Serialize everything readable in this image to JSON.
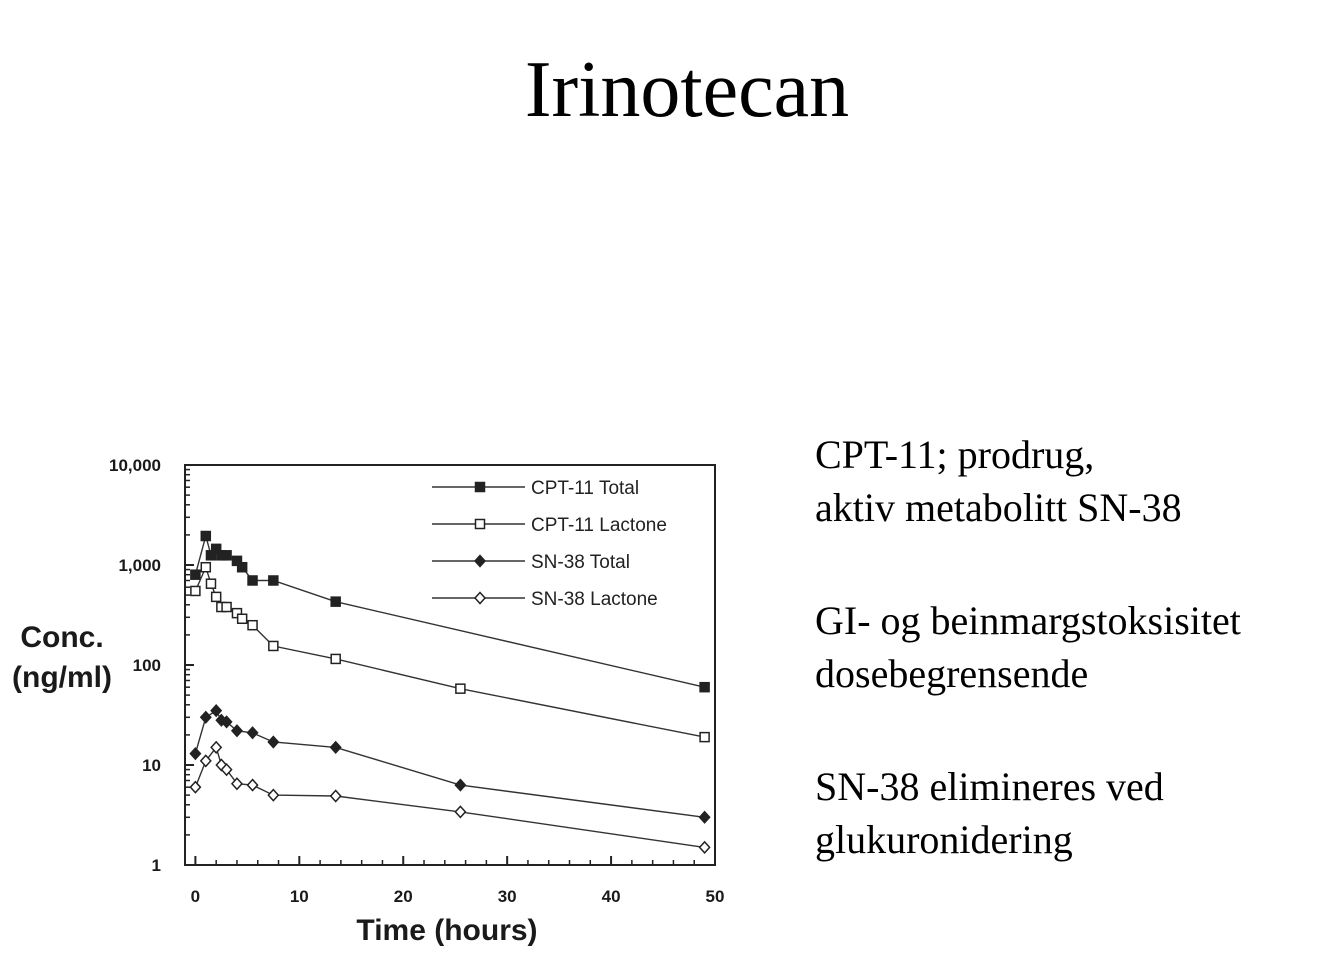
{
  "title": "Irinotecan",
  "chart_data": {
    "type": "line",
    "xlabel": "Time (hours)",
    "ylabel": [
      "Conc.",
      "(ng/ml)"
    ],
    "xlim": [
      -1,
      50
    ],
    "ylim": [
      1,
      10000
    ],
    "yscale": "log",
    "xticks": [
      0,
      10,
      20,
      30,
      40,
      50
    ],
    "xtick_labels": [
      "0",
      "10",
      "20",
      "30",
      "40",
      "50"
    ],
    "yticks": [
      1,
      10,
      100,
      1000,
      10000
    ],
    "ytick_labels": [
      "1",
      "10",
      "100",
      "1,000",
      "10,000"
    ],
    "grid": false,
    "legend_position": "top-right",
    "series": [
      {
        "name": "CPT-11 Total",
        "marker": "square",
        "filled": true,
        "x": [
          0,
          1,
          1.5,
          2,
          2.5,
          3,
          4,
          4.5,
          5.5,
          7.5,
          13.5,
          49
        ],
        "y": [
          800,
          1950,
          1250,
          1450,
          1250,
          1250,
          1100,
          950,
          700,
          700,
          430,
          60
        ]
      },
      {
        "name": "CPT-11 Lactone",
        "marker": "square",
        "filled": false,
        "x": [
          0,
          1,
          1.5,
          2,
          2.5,
          3,
          4,
          4.5,
          5.5,
          7.5,
          13.5,
          25.5,
          49
        ],
        "y": [
          550,
          950,
          650,
          480,
          380,
          380,
          330,
          290,
          250,
          155,
          115,
          58,
          19
        ]
      },
      {
        "name": "SN-38 Total",
        "marker": "diamond",
        "filled": true,
        "x": [
          0,
          1,
          2,
          2.5,
          3,
          4,
          5.5,
          7.5,
          13.5,
          25.5,
          49
        ],
        "y": [
          13,
          30,
          35,
          28,
          27,
          22,
          21,
          17,
          15,
          6.3,
          3
        ]
      },
      {
        "name": "SN-38 Lactone",
        "marker": "diamond",
        "filled": false,
        "x": [
          0,
          1,
          2,
          2.5,
          3,
          4,
          5.5,
          7.5,
          13.5,
          25.5,
          49
        ],
        "y": [
          6,
          11,
          15,
          10,
          9,
          6.5,
          6.3,
          5,
          4.9,
          3.4,
          1.5
        ]
      }
    ]
  },
  "notes": [
    {
      "lines": [
        "CPT-11; prodrug,",
        "aktiv metabolitt SN-38"
      ]
    },
    {
      "lines": [
        "GI- og beinmargstoksisitet",
        "dosebegrensende"
      ]
    },
    {
      "lines": [
        "SN-38 elimineres ved",
        "glukuronidering"
      ]
    }
  ]
}
